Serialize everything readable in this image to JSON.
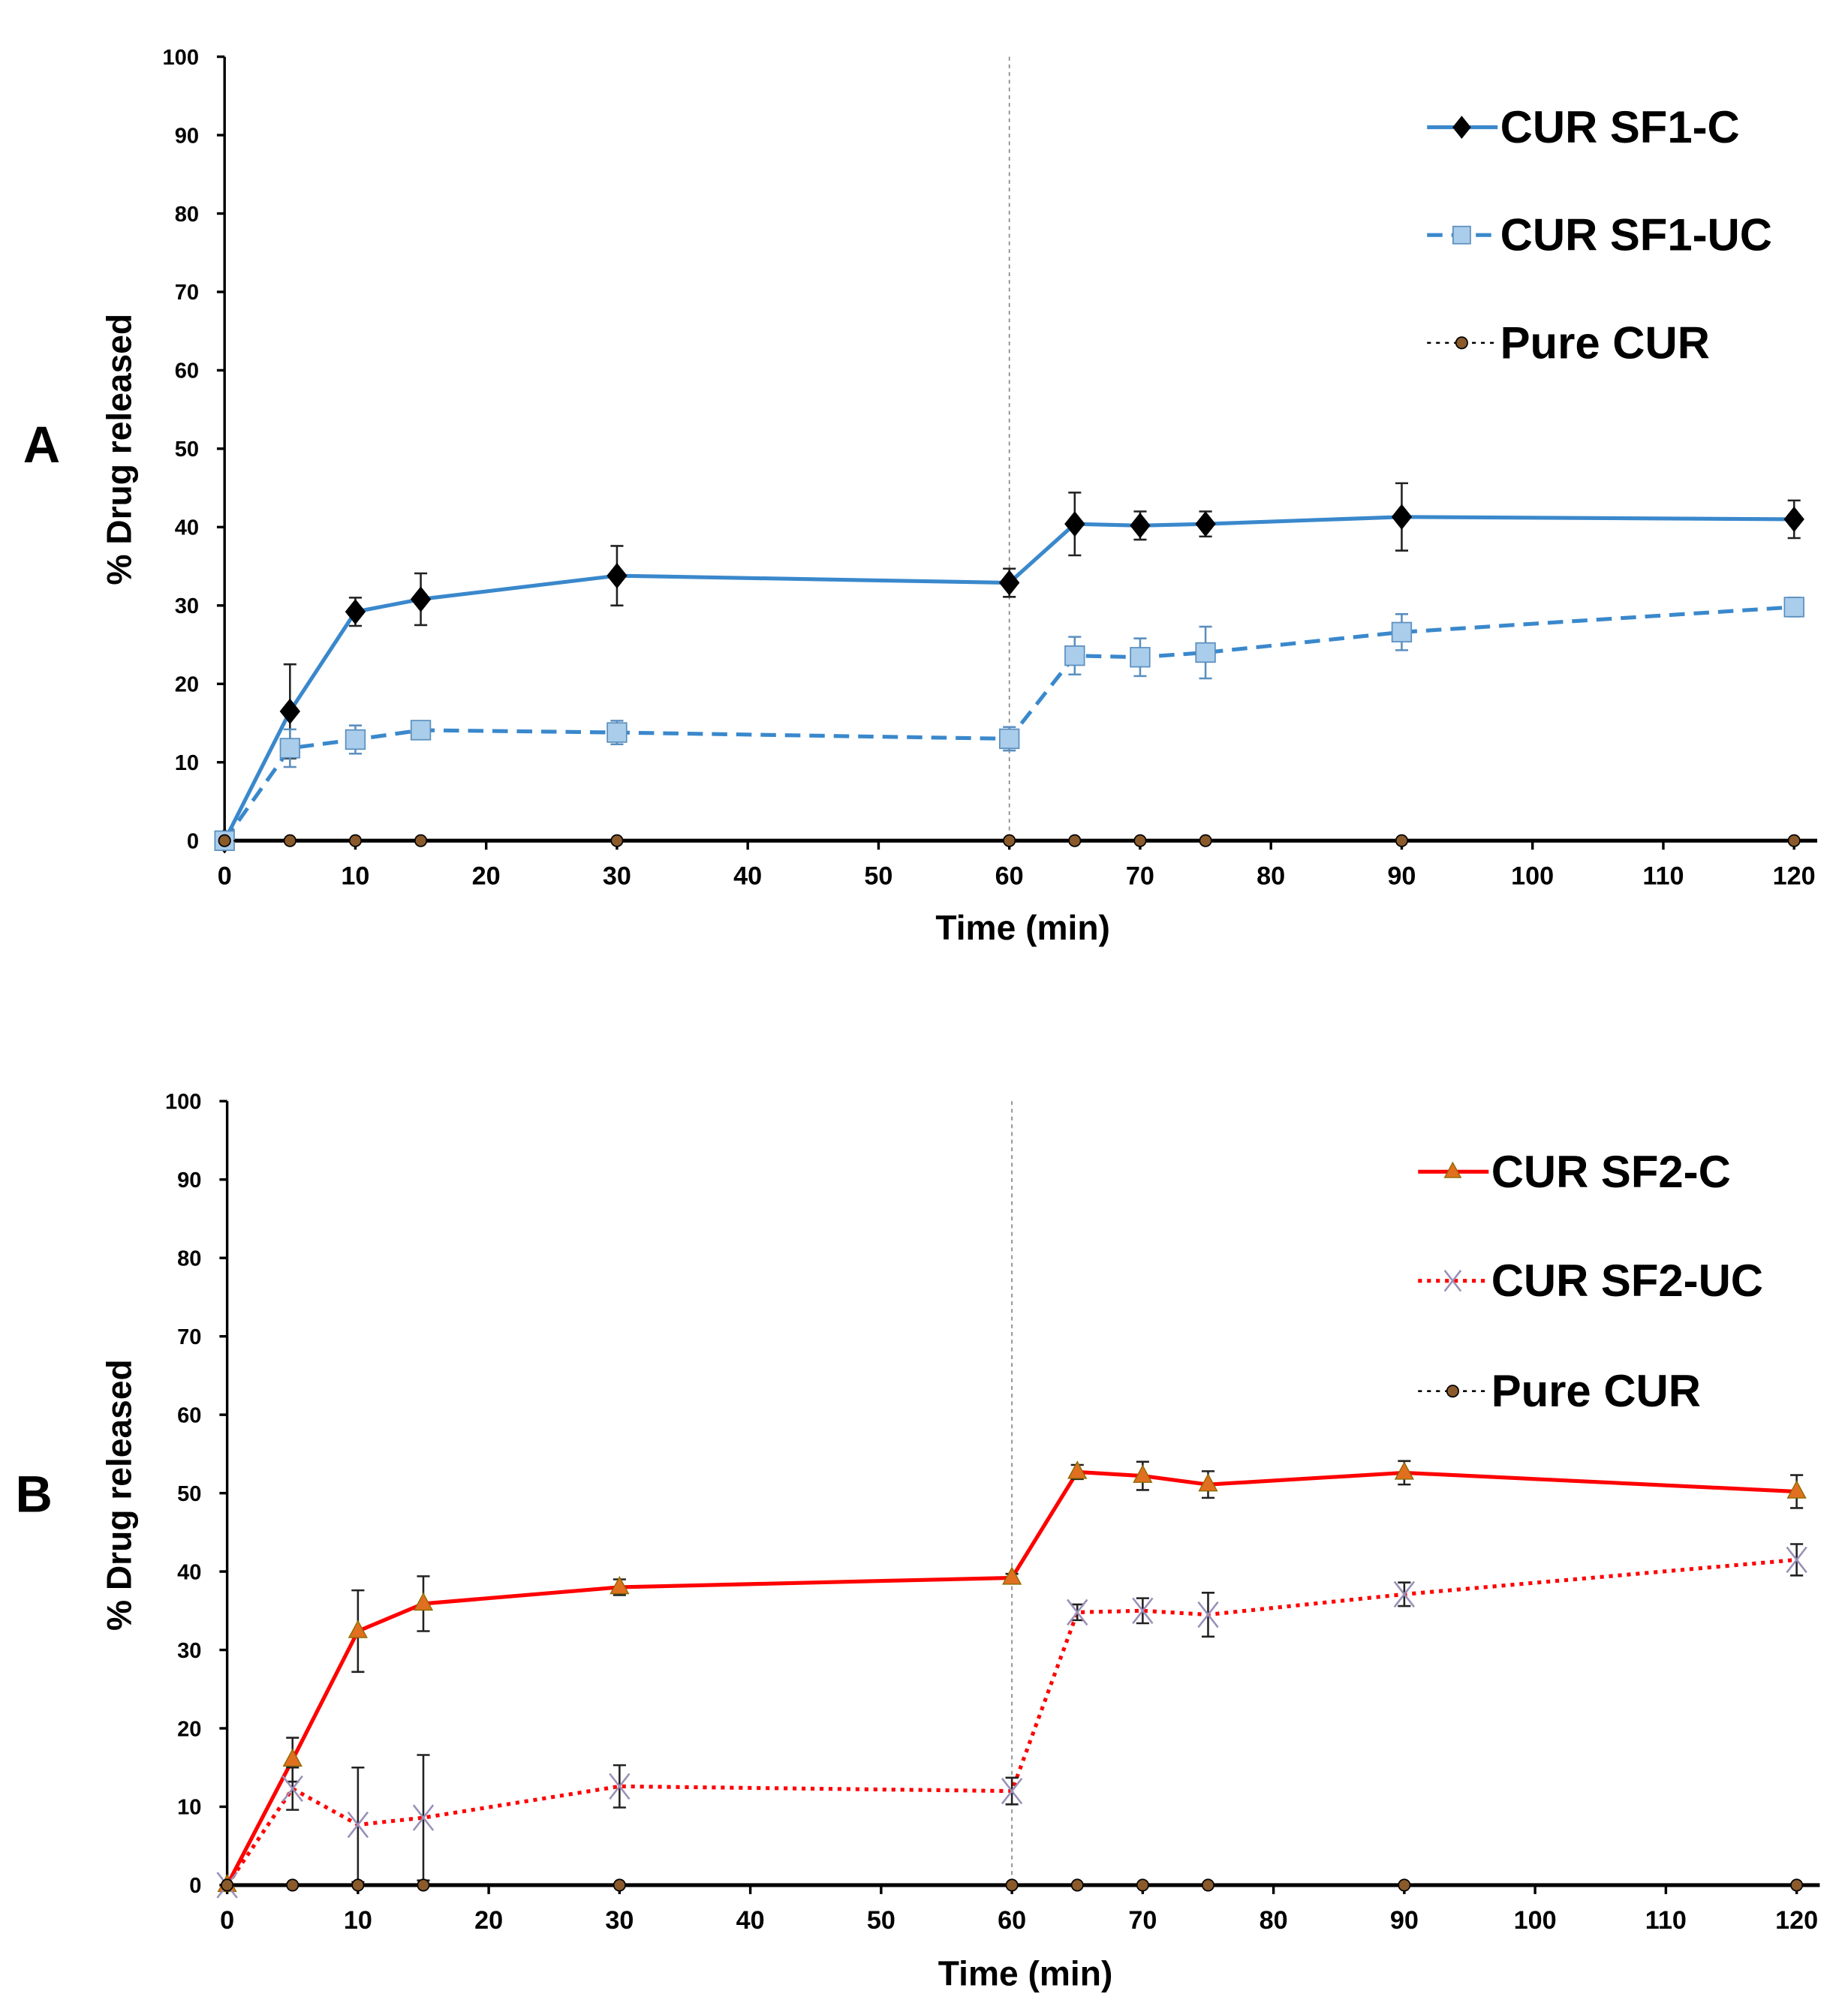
{
  "chart_data": [
    {
      "type": "line",
      "panel_label": "A",
      "xlabel": "Time (min)",
      "ylabel": "% Drug released",
      "xlim": [
        0,
        120
      ],
      "ylim": [
        0,
        100
      ],
      "xticks": [
        0,
        10,
        20,
        30,
        40,
        50,
        60,
        70,
        80,
        90,
        100,
        110,
        120
      ],
      "yticks": [
        0,
        10,
        20,
        30,
        40,
        50,
        60,
        70,
        80,
        90,
        100
      ],
      "vline_x": 60,
      "legend_position": "top-right",
      "x": [
        0,
        5,
        10,
        15,
        30,
        60,
        65,
        70,
        75,
        90,
        120
      ],
      "series": [
        {
          "name": "CUR SF1-C",
          "color": "#3a88cc",
          "marker": "diamond",
          "marker_color": "#000000",
          "dash": "solid",
          "values": [
            0,
            16.5,
            29.2,
            30.8,
            33.8,
            32.9,
            40.4,
            40.2,
            40.4,
            41.3,
            41.0
          ],
          "errors": [
            0,
            6.0,
            1.8,
            3.3,
            3.8,
            1.8,
            4.0,
            1.8,
            1.6,
            4.3,
            2.4
          ]
        },
        {
          "name": "CUR SF1-UC",
          "color": "#3a88cc",
          "marker": "square",
          "marker_color": "#a9cdea",
          "dash": "dashed",
          "values": [
            0,
            11.8,
            12.9,
            14.1,
            13.8,
            13.0,
            23.6,
            23.4,
            24.0,
            26.6,
            29.8
          ],
          "errors": [
            0,
            2.4,
            1.8,
            0.8,
            1.5,
            1.5,
            2.4,
            2.4,
            3.3,
            2.3,
            1.2
          ]
        },
        {
          "name": "Pure CUR",
          "color": "#000000",
          "marker": "circle",
          "marker_color": "#8a5a2b",
          "dash": "dotted",
          "values": [
            0,
            0,
            0,
            0,
            0,
            0,
            0,
            0,
            0,
            0,
            0
          ],
          "errors": [
            0,
            0,
            0,
            0,
            0,
            0,
            0,
            0,
            0,
            0,
            0
          ]
        }
      ]
    },
    {
      "type": "line",
      "panel_label": "B",
      "xlabel": "Time (min)",
      "ylabel": "% Drug released",
      "xlim": [
        0,
        120
      ],
      "ylim": [
        0,
        100
      ],
      "xticks": [
        0,
        10,
        20,
        30,
        40,
        50,
        60,
        70,
        80,
        90,
        100,
        110,
        120
      ],
      "yticks": [
        0,
        10,
        20,
        30,
        40,
        50,
        60,
        70,
        80,
        90,
        100
      ],
      "vline_x": 60,
      "legend_position": "top-right",
      "x": [
        0,
        5,
        10,
        15,
        30,
        60,
        65,
        70,
        75,
        90,
        120
      ],
      "series": [
        {
          "name": "CUR SF2-C",
          "color": "#ff0000",
          "marker": "triangle",
          "marker_color": "#e07020",
          "dash": "solid",
          "values": [
            0,
            16.0,
            32.4,
            35.9,
            38.0,
            39.2,
            52.7,
            52.2,
            51.1,
            52.6,
            50.2
          ],
          "errors": [
            0,
            2.8,
            5.2,
            3.5,
            1.0,
            0.5,
            0.9,
            1.8,
            1.7,
            1.5,
            2.1
          ]
        },
        {
          "name": "CUR SF2-UC",
          "color": "#ff0000",
          "marker": "x",
          "marker_color": "#9a8fb8",
          "dash": "dotted",
          "values": [
            0,
            12.3,
            7.7,
            8.6,
            12.6,
            12.0,
            34.8,
            35.0,
            34.5,
            37.1,
            41.5
          ],
          "errors": [
            0,
            2.7,
            7.3,
            8.0,
            2.7,
            1.7,
            1.0,
            1.6,
            2.8,
            1.5,
            2.0
          ]
        },
        {
          "name": "Pure CUR",
          "color": "#000000",
          "marker": "circle",
          "marker_color": "#8a5a2b",
          "dash": "dotted",
          "values": [
            0,
            0,
            0,
            0,
            0,
            0,
            0,
            0,
            0,
            0,
            0
          ],
          "errors": [
            0,
            0,
            0,
            0,
            0,
            0,
            0,
            0,
            0,
            0,
            0
          ]
        }
      ]
    }
  ]
}
